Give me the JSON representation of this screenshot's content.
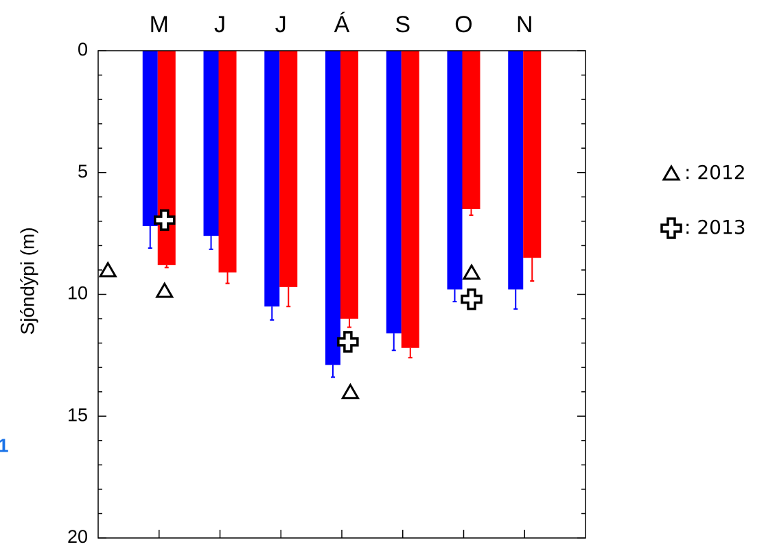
{
  "chart_data": {
    "type": "bar",
    "y_label": "Sjóndýpi (m)",
    "side_label": "1",
    "categories": [
      "M",
      "J",
      "J",
      "Á",
      "S",
      "O",
      "N"
    ],
    "xlim": [
      0,
      8
    ],
    "ylim": [
      0,
      20
    ],
    "y_inverted": true,
    "yticks": [
      0,
      5,
      10,
      15,
      20
    ],
    "yminorticks": [
      1,
      2,
      3,
      4,
      6,
      7,
      8,
      9,
      11,
      12,
      13,
      14,
      16,
      17,
      18,
      19
    ],
    "series": [
      {
        "color": "#0000ff",
        "values": [
          7.2,
          7.6,
          10.5,
          12.9,
          11.6,
          9.8,
          9.8
        ],
        "errors": [
          0.9,
          0.55,
          0.55,
          0.5,
          0.7,
          0.5,
          0.8
        ]
      },
      {
        "color": "#ff0000",
        "values": [
          8.8,
          9.1,
          9.7,
          11.0,
          12.2,
          6.5,
          8.5
        ],
        "errors": [
          0.1,
          0.45,
          0.8,
          0.35,
          0.4,
          0.25,
          0.95
        ]
      }
    ],
    "markers": [
      {
        "name": ": 2012",
        "shape": "triangle",
        "x": [
          0.16,
          1.09,
          4.14,
          6.13
        ],
        "y": [
          9.0,
          9.85,
          14.0,
          9.1
        ]
      },
      {
        "name": ": 2013",
        "shape": "plus",
        "x": [
          1.09,
          4.1,
          6.13
        ],
        "y": [
          6.95,
          11.95,
          10.2
        ]
      }
    ]
  }
}
